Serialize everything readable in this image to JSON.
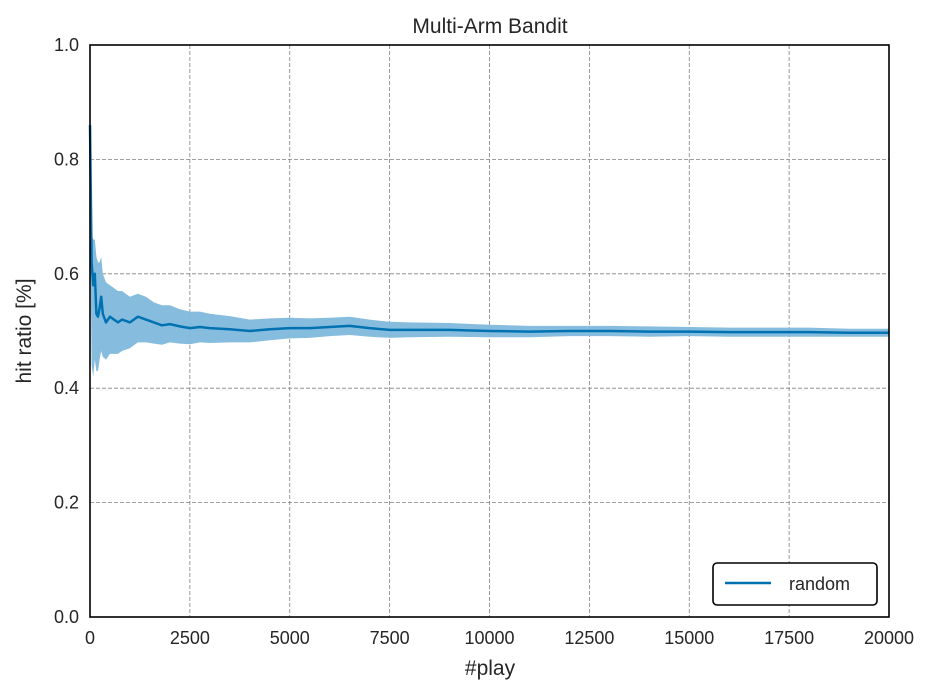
{
  "chart_data": {
    "type": "line",
    "title": "Multi-Arm Bandit",
    "xlabel": "#play",
    "ylabel": "hit ratio [%]",
    "xlim": [
      0,
      20000
    ],
    "ylim": [
      0.0,
      1.0
    ],
    "xticks": [
      0,
      2500,
      5000,
      7500,
      10000,
      12500,
      15000,
      17500,
      20000
    ],
    "xtick_labels": [
      "0",
      "2500",
      "5000",
      "7500",
      "10000",
      "12500",
      "15000",
      "17500",
      "20000"
    ],
    "yticks": [
      0.0,
      0.2,
      0.4,
      0.6,
      0.8,
      1.0
    ],
    "ytick_labels": [
      "0.0",
      "0.2",
      "0.4",
      "0.6",
      "0.8",
      "1.0"
    ],
    "grid": true,
    "legend_position": "lower-right",
    "colors": {
      "line": "#0072b2",
      "band": "#7fb8dc"
    },
    "series": [
      {
        "name": "random",
        "x": [
          0,
          40,
          80,
          120,
          160,
          200,
          240,
          280,
          320,
          400,
          500,
          600,
          700,
          800,
          1000,
          1200,
          1400,
          1600,
          1800,
          2000,
          2250,
          2500,
          2750,
          3000,
          3500,
          4000,
          4500,
          5000,
          5500,
          6000,
          6500,
          7000,
          7500,
          8000,
          9000,
          10000,
          11000,
          12000,
          13000,
          14000,
          15000,
          16000,
          17000,
          18000,
          19000,
          20000
        ],
        "y": [
          0.86,
          0.62,
          0.58,
          0.6,
          0.53,
          0.525,
          0.54,
          0.56,
          0.53,
          0.515,
          0.525,
          0.52,
          0.515,
          0.52,
          0.515,
          0.525,
          0.52,
          0.515,
          0.51,
          0.512,
          0.508,
          0.505,
          0.507,
          0.505,
          0.503,
          0.5,
          0.503,
          0.505,
          0.505,
          0.507,
          0.509,
          0.505,
          0.502,
          0.502,
          0.502,
          0.5,
          0.499,
          0.5,
          0.5,
          0.499,
          0.499,
          0.498,
          0.498,
          0.498,
          0.497,
          0.497
        ],
        "lower": [
          0.72,
          0.44,
          0.42,
          0.45,
          0.43,
          0.43,
          0.45,
          0.465,
          0.455,
          0.45,
          0.46,
          0.46,
          0.46,
          0.465,
          0.47,
          0.48,
          0.48,
          0.478,
          0.476,
          0.48,
          0.478,
          0.477,
          0.48,
          0.479,
          0.48,
          0.48,
          0.484,
          0.487,
          0.488,
          0.491,
          0.493,
          0.49,
          0.488,
          0.489,
          0.49,
          0.489,
          0.489,
          0.491,
          0.491,
          0.49,
          0.491,
          0.49,
          0.49,
          0.49,
          0.49,
          0.49
        ],
        "upper": [
          0.97,
          0.67,
          0.66,
          0.66,
          0.63,
          0.62,
          0.62,
          0.63,
          0.6,
          0.585,
          0.58,
          0.575,
          0.57,
          0.57,
          0.56,
          0.565,
          0.56,
          0.55,
          0.545,
          0.545,
          0.538,
          0.534,
          0.534,
          0.53,
          0.526,
          0.52,
          0.522,
          0.523,
          0.522,
          0.523,
          0.525,
          0.52,
          0.516,
          0.515,
          0.514,
          0.511,
          0.509,
          0.509,
          0.509,
          0.508,
          0.507,
          0.506,
          0.506,
          0.506,
          0.504,
          0.504
        ]
      }
    ]
  }
}
